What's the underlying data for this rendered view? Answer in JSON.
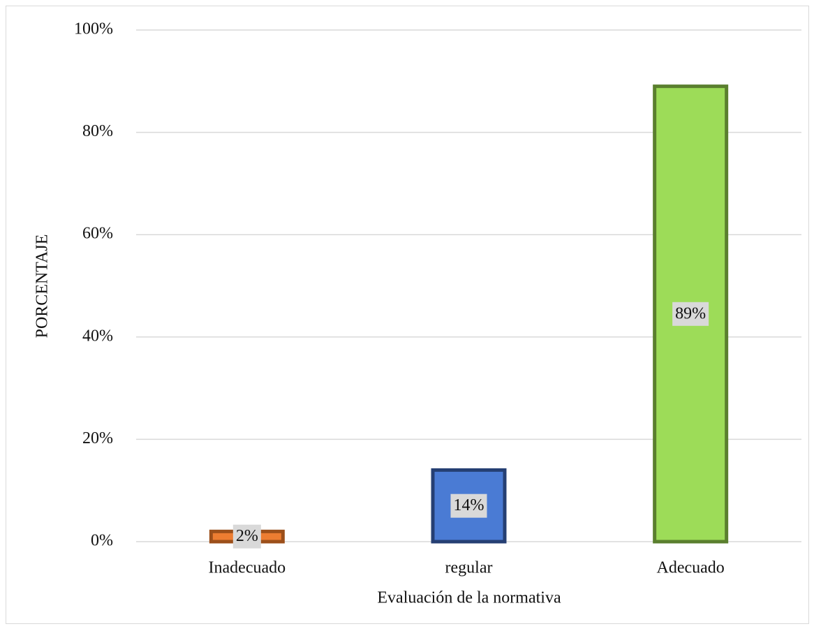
{
  "chart_data": {
    "type": "bar",
    "x_label": "Evaluación de la normativa",
    "y_label": "PORCENTAJE",
    "categories": [
      "Inadecuado",
      "regular",
      "Adecuado"
    ],
    "values": [
      2,
      14,
      89
    ],
    "value_labels": [
      "2%",
      "14%",
      "89%"
    ],
    "colors": [
      "#ed7d31",
      "#4a7bd4",
      "#9ddc58"
    ],
    "edge_colors": [
      "#9c4f1a",
      "#253f73",
      "#5a7f2e"
    ],
    "ylim": [
      0,
      100
    ],
    "yticks": [
      {
        "value": 0,
        "label": "0%"
      },
      {
        "value": 20,
        "label": "20%"
      },
      {
        "value": 40,
        "label": "40%"
      },
      {
        "value": 60,
        "label": "60%"
      },
      {
        "value": 80,
        "label": "80%"
      },
      {
        "value": 100,
        "label": "100%"
      }
    ],
    "grid": true
  }
}
